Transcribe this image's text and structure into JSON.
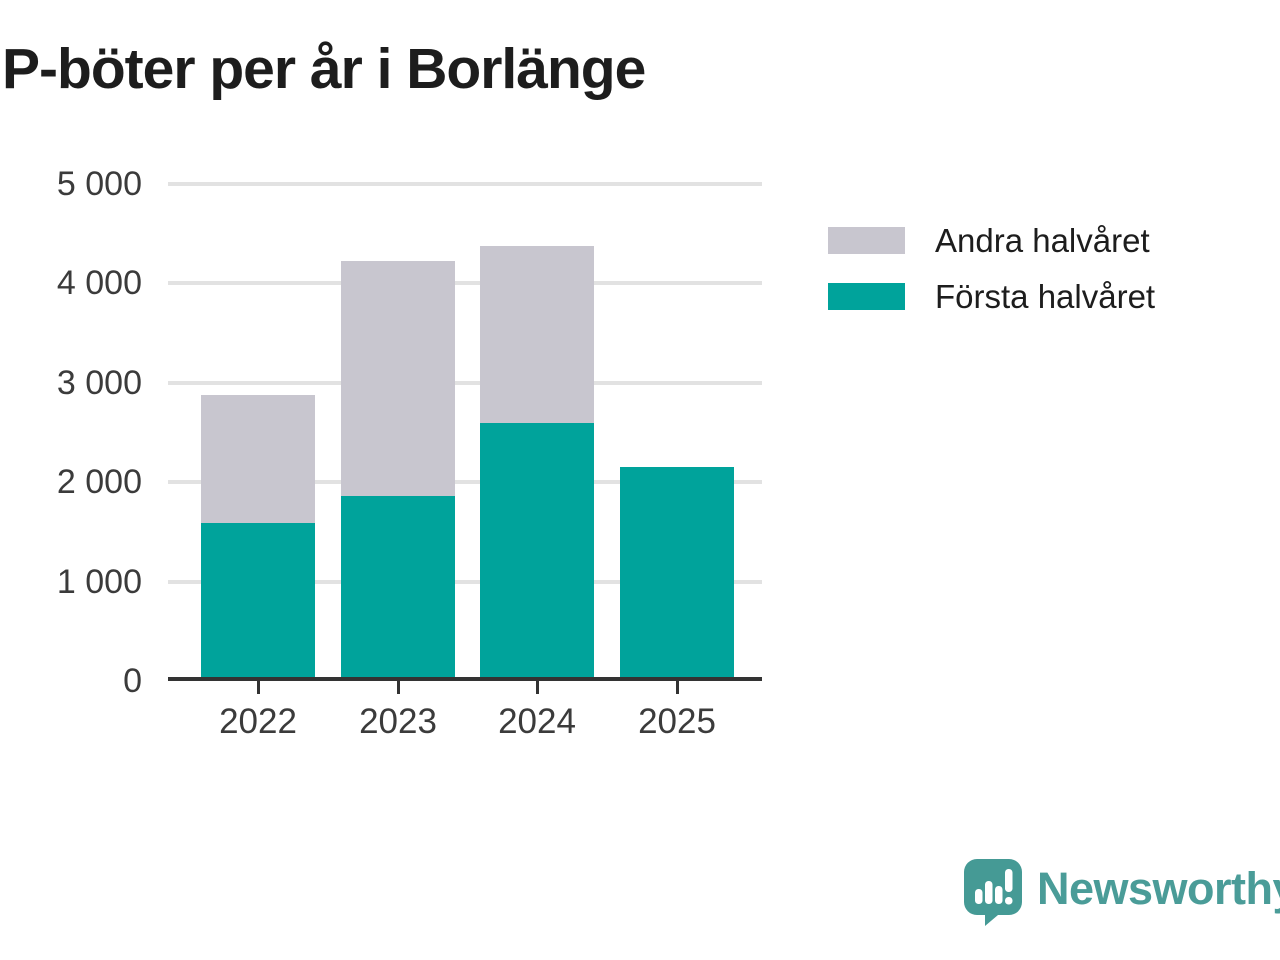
{
  "title": "P-böter per år i Borlänge",
  "chart_data": {
    "type": "bar",
    "stacked": true,
    "title": "P-böter per år i Borlänge",
    "categories": [
      "2022",
      "2023",
      "2024",
      "2025"
    ],
    "series": [
      {
        "name": "Första halvåret",
        "color": "#00a39b",
        "values": [
          1590,
          1860,
          2600,
          2150
        ]
      },
      {
        "name": "Andra halvåret",
        "color": "#c8c6cf",
        "values": [
          1290,
          2370,
          1780,
          0
        ]
      }
    ],
    "totals": [
      2880,
      4230,
      4380,
      2150
    ],
    "xlabel": "",
    "ylabel": "",
    "ylim": [
      0,
      5000
    ],
    "yticks": [
      {
        "value": 5000,
        "label": "5 000"
      },
      {
        "value": 4000,
        "label": "4 000"
      },
      {
        "value": 3000,
        "label": "3 000"
      },
      {
        "value": 2000,
        "label": "2 000"
      },
      {
        "value": 1000,
        "label": "1 000"
      },
      {
        "value": 0,
        "label": "0"
      }
    ],
    "grid": "horizontal",
    "legend_position": "right"
  },
  "legend": {
    "items": [
      {
        "label": "Andra halvåret",
        "color": "#c8c6cf"
      },
      {
        "label": "Första halvåret",
        "color": "#00a39b"
      }
    ]
  },
  "branding": {
    "logo_text": "Newsworthy",
    "logo_icon": "bar-chart-speech-bubble-icon",
    "logo_text_color": "#4a9c98",
    "logo_icon_color": "#459a95"
  },
  "colors": {
    "first_half": "#00a39b",
    "second_half": "#c8c6cf",
    "gridline": "#e2e2e2",
    "axis": "#333333",
    "axis_text": "#3b3b3b",
    "title_text": "#1d1d1d"
  }
}
